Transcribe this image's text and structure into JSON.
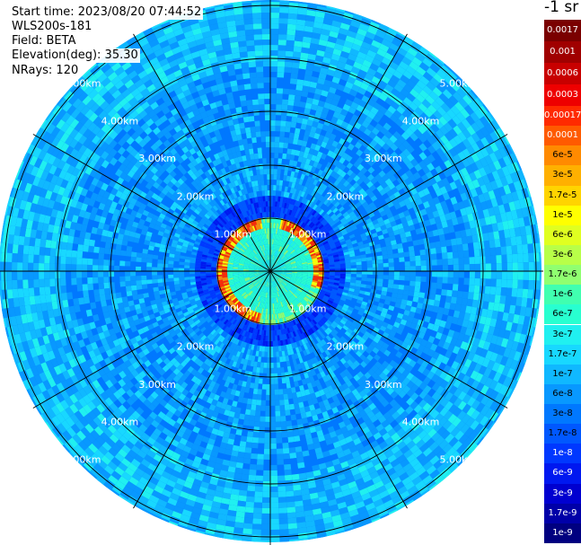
{
  "info": {
    "start_time": "Start time: 2023/08/20 07:44:52",
    "instrument": "WLS200s-181",
    "field": "Field: BETA",
    "elevation": "Elevation(deg): 35.30",
    "nrays": "NRays: 120"
  },
  "colorbar": {
    "title": "-1 sr",
    "segments": [
      {
        "label": "0.0017",
        "color": "#7a0000",
        "label_color": "#ffffff"
      },
      {
        "label": "0.001",
        "color": "#a00000",
        "label_color": "#ffffff"
      },
      {
        "label": "0.0006",
        "color": "#c80000",
        "label_color": "#ffffff"
      },
      {
        "label": "0.0003",
        "color": "#ee0000",
        "label_color": "#ffffff"
      },
      {
        "label": "0.00017",
        "color": "#ff2a00",
        "label_color": "#ffffff"
      },
      {
        "label": "0.0001",
        "color": "#ff5a00",
        "label_color": "#ffffff"
      },
      {
        "label": "6e-5",
        "color": "#ff8a00",
        "label_color": "#000000"
      },
      {
        "label": "3e-5",
        "color": "#ffb000",
        "label_color": "#000000"
      },
      {
        "label": "1.7e-5",
        "color": "#ffd400",
        "label_color": "#000000"
      },
      {
        "label": "1e-5",
        "color": "#ffff00",
        "label_color": "#000000"
      },
      {
        "label": "6e-6",
        "color": "#e0ff20",
        "label_color": "#000000"
      },
      {
        "label": "3e-6",
        "color": "#b8ff48",
        "label_color": "#000000"
      },
      {
        "label": "1.7e-6",
        "color": "#90ff70",
        "label_color": "#000000"
      },
      {
        "label": "1e-6",
        "color": "#40ffb0",
        "label_color": "#000000"
      },
      {
        "label": "6e-7",
        "color": "#28ffd0",
        "label_color": "#000000"
      },
      {
        "label": "3e-7",
        "color": "#20f0f0",
        "label_color": "#000000"
      },
      {
        "label": "1.7e-7",
        "color": "#18d8ff",
        "label_color": "#000000"
      },
      {
        "label": "1e-7",
        "color": "#10b8ff",
        "label_color": "#000000"
      },
      {
        "label": "6e-8",
        "color": "#0898ff",
        "label_color": "#000000"
      },
      {
        "label": "3e-8",
        "color": "#0078ff",
        "label_color": "#000000"
      },
      {
        "label": "1.7e-8",
        "color": "#0058ff",
        "label_color": "#000000"
      },
      {
        "label": "1e-8",
        "color": "#0038ff",
        "label_color": "#ffffff"
      },
      {
        "label": "6e-9",
        "color": "#0018f0",
        "label_color": "#ffffff"
      },
      {
        "label": "3e-9",
        "color": "#0000d0",
        "label_color": "#ffffff"
      },
      {
        "label": "1.7e-9",
        "color": "#0000a8",
        "label_color": "#ffffff"
      },
      {
        "label": "1e-9",
        "color": "#000080",
        "label_color": "#ffffff"
      }
    ]
  },
  "plot": {
    "ring_labels": [
      "1.00km",
      "2.00km",
      "3.00km",
      "4.00km",
      "5.00km"
    ],
    "num_rays": 120,
    "max_range_km": 6.0
  }
}
